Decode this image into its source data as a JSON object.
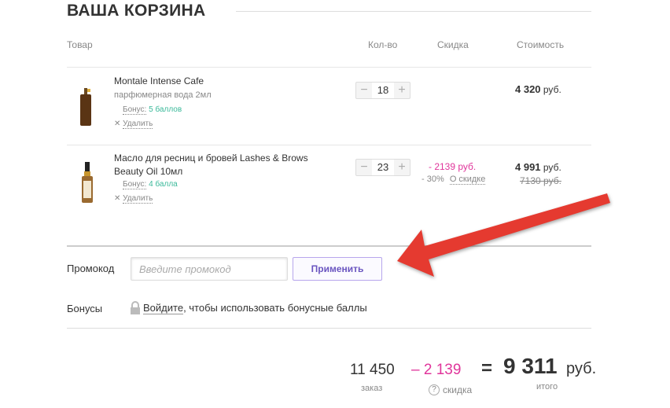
{
  "title": "ВАША КОРЗИНА",
  "columns": {
    "product": "Товар",
    "qty": "Кол-во",
    "discount": "Скидка",
    "cost": "Стоимость"
  },
  "items": [
    {
      "name": "Montale Intense Cafe",
      "subtitle": "парфюмерная вода 2мл",
      "bonus_label": "Бонус:",
      "bonus_value": "5 баллов",
      "remove": "Удалить",
      "qty": "18",
      "price": "4 320",
      "currency": "руб."
    },
    {
      "name": "Масло для ресниц и бровей Lashes & Brows Beauty Oil 10мл",
      "bonus_label": "Бонус:",
      "bonus_value": "4 балла",
      "remove": "Удалить",
      "qty": "23",
      "discount": "- 2139 руб.",
      "discount_pct": "- 30%",
      "discount_link": "О скидке",
      "price": "4 991",
      "currency": "руб.",
      "old_price": "7130 руб."
    }
  ],
  "promo": {
    "label": "Промокод",
    "placeholder": "Введите промокод",
    "apply": "Применить"
  },
  "bonuses": {
    "label": "Бонусы",
    "login_link": "Войдите",
    "text": ", чтобы использовать бонусные баллы"
  },
  "summary": {
    "order": "11 450",
    "order_label": "заказ",
    "discount": "– 2 139",
    "discount_label": "скидка",
    "equals": "=",
    "total": "9 311",
    "currency": "руб.",
    "total_label": "итого"
  },
  "colors": {
    "accent": "#e0359b",
    "bonus": "#3bb99a",
    "arrow": "#e53a30"
  }
}
